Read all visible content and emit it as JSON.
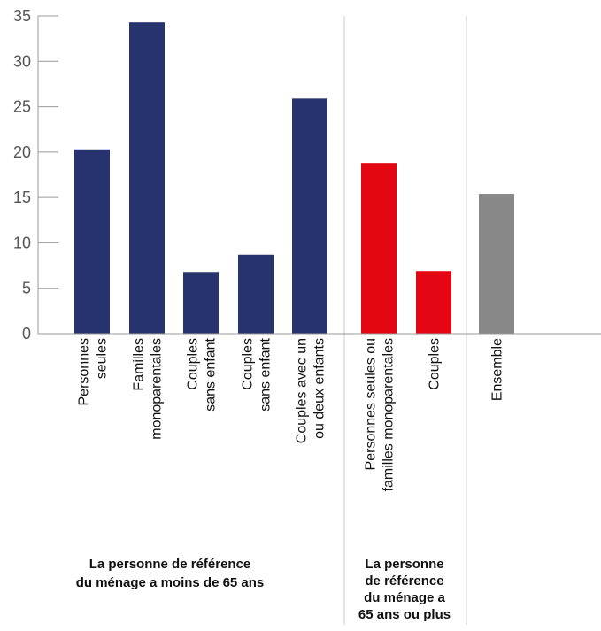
{
  "chart_data": {
    "type": "bar",
    "title": "",
    "xlabel": "",
    "ylabel": "",
    "ylim": [
      0,
      35
    ],
    "yticks": [
      0,
      5,
      10,
      15,
      20,
      25,
      30,
      35
    ],
    "grid": false,
    "legend": "none",
    "categories": [
      [
        "Personnes",
        "seules"
      ],
      [
        "Familles",
        "monoparentales"
      ],
      [
        "Couples",
        "sans enfant"
      ],
      [
        "Couples",
        "sans enfant"
      ],
      [
        "Couples avec un",
        "ou deux enfants"
      ],
      [
        "Personnes seules ou",
        "familles monoparentales"
      ],
      [
        "Couples"
      ],
      [
        "Ensemble"
      ]
    ],
    "values": [
      20.3,
      34.3,
      6.8,
      8.7,
      25.9,
      18.8,
      6.9,
      15.4
    ],
    "bar_colors": [
      "#26336e",
      "#26336e",
      "#26336e",
      "#26336e",
      "#26336e",
      "#e30613",
      "#e30613",
      "#888888"
    ],
    "groups": [
      {
        "label": [
          "La personne de référence",
          "du ménage a moins de 65 ans"
        ]
      },
      {
        "label": [
          "La personne",
          "de référence",
          "du ménage a",
          "65 ans ou plus"
        ]
      }
    ]
  },
  "colors": {
    "axis": "#999999",
    "separator": "#cccccc",
    "under_65": "#26336e",
    "over_65": "#e30613",
    "overall": "#888888"
  }
}
